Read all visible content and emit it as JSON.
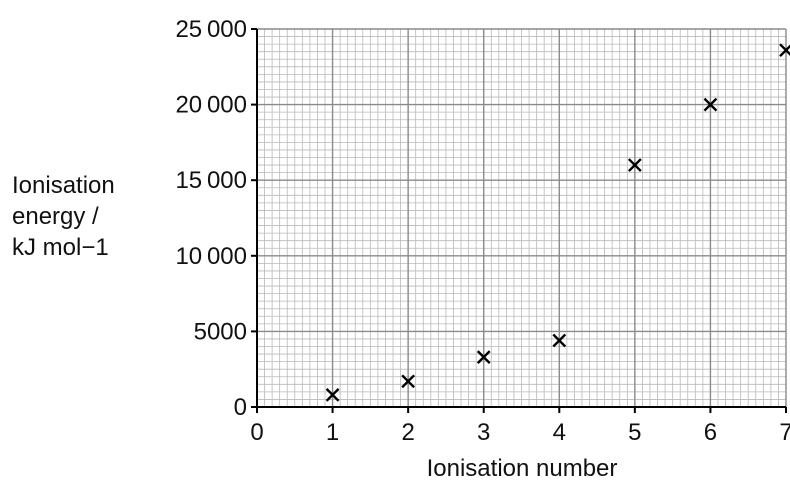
{
  "chart_data": {
    "type": "scatter",
    "title": "",
    "xlabel": "Ionisation number",
    "ylabel_lines": [
      "Ionisation",
      "energy /",
      "kJ mol−1"
    ],
    "x_ticks": [
      "0",
      "1",
      "2",
      "3",
      "4",
      "5",
      "6",
      "7"
    ],
    "y_ticks": [
      "0",
      "5000",
      "10 000",
      "15 000",
      "20 000",
      "25 000"
    ],
    "xlim": [
      0,
      7
    ],
    "ylim": [
      0,
      25000
    ],
    "grid": true,
    "marker": "cross",
    "points": [
      {
        "x": 1,
        "y": 800
      },
      {
        "x": 2,
        "y": 1700
      },
      {
        "x": 3,
        "y": 3300
      },
      {
        "x": 4,
        "y": 4400
      },
      {
        "x": 5,
        "y": 16000
      },
      {
        "x": 6,
        "y": 20000
      },
      {
        "x": 7,
        "y": 23600
      }
    ]
  }
}
